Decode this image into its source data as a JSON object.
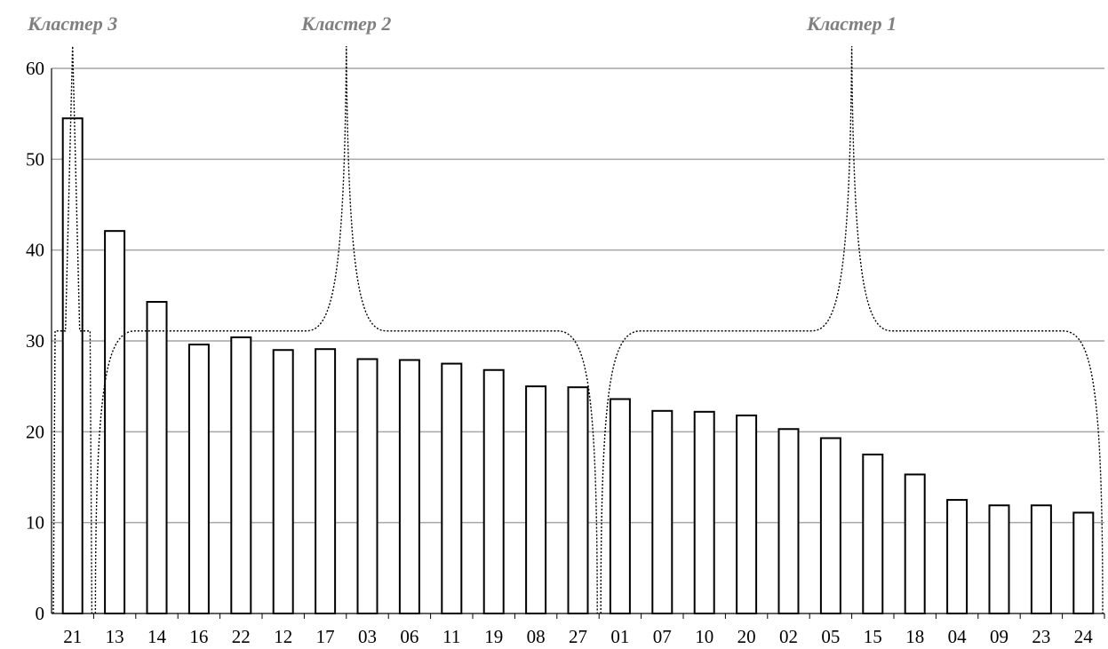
{
  "chart_data": {
    "type": "bar",
    "categories": [
      "21",
      "13",
      "14",
      "16",
      "22",
      "12",
      "17",
      "03",
      "06",
      "11",
      "19",
      "08",
      "27",
      "01",
      "07",
      "10",
      "20",
      "02",
      "05",
      "15",
      "18",
      "04",
      "09",
      "23",
      "24"
    ],
    "values": [
      54.5,
      42.1,
      34.3,
      29.6,
      30.4,
      29.0,
      29.1,
      28.0,
      27.9,
      27.5,
      26.8,
      25.0,
      24.9,
      23.6,
      22.3,
      22.2,
      21.8,
      20.3,
      19.3,
      17.5,
      15.3,
      12.5,
      11.9,
      11.9,
      11.1
    ],
    "ylim": [
      0,
      60
    ],
    "yticks": [
      0,
      10,
      20,
      30,
      40,
      50,
      60
    ],
    "grid": true,
    "clusters": [
      {
        "label": "Кластер 3",
        "start": 0,
        "end": 0
      },
      {
        "label": "Кластер 2",
        "start": 1,
        "end": 12
      },
      {
        "label": "Кластер 1",
        "start": 13,
        "end": 24
      }
    ]
  },
  "colors": {
    "bar_fill": "#ffffff",
    "bar_stroke": "#000000",
    "grid": "#a6a6a6",
    "cluster_label": "#808080",
    "bracket": "#000000"
  }
}
